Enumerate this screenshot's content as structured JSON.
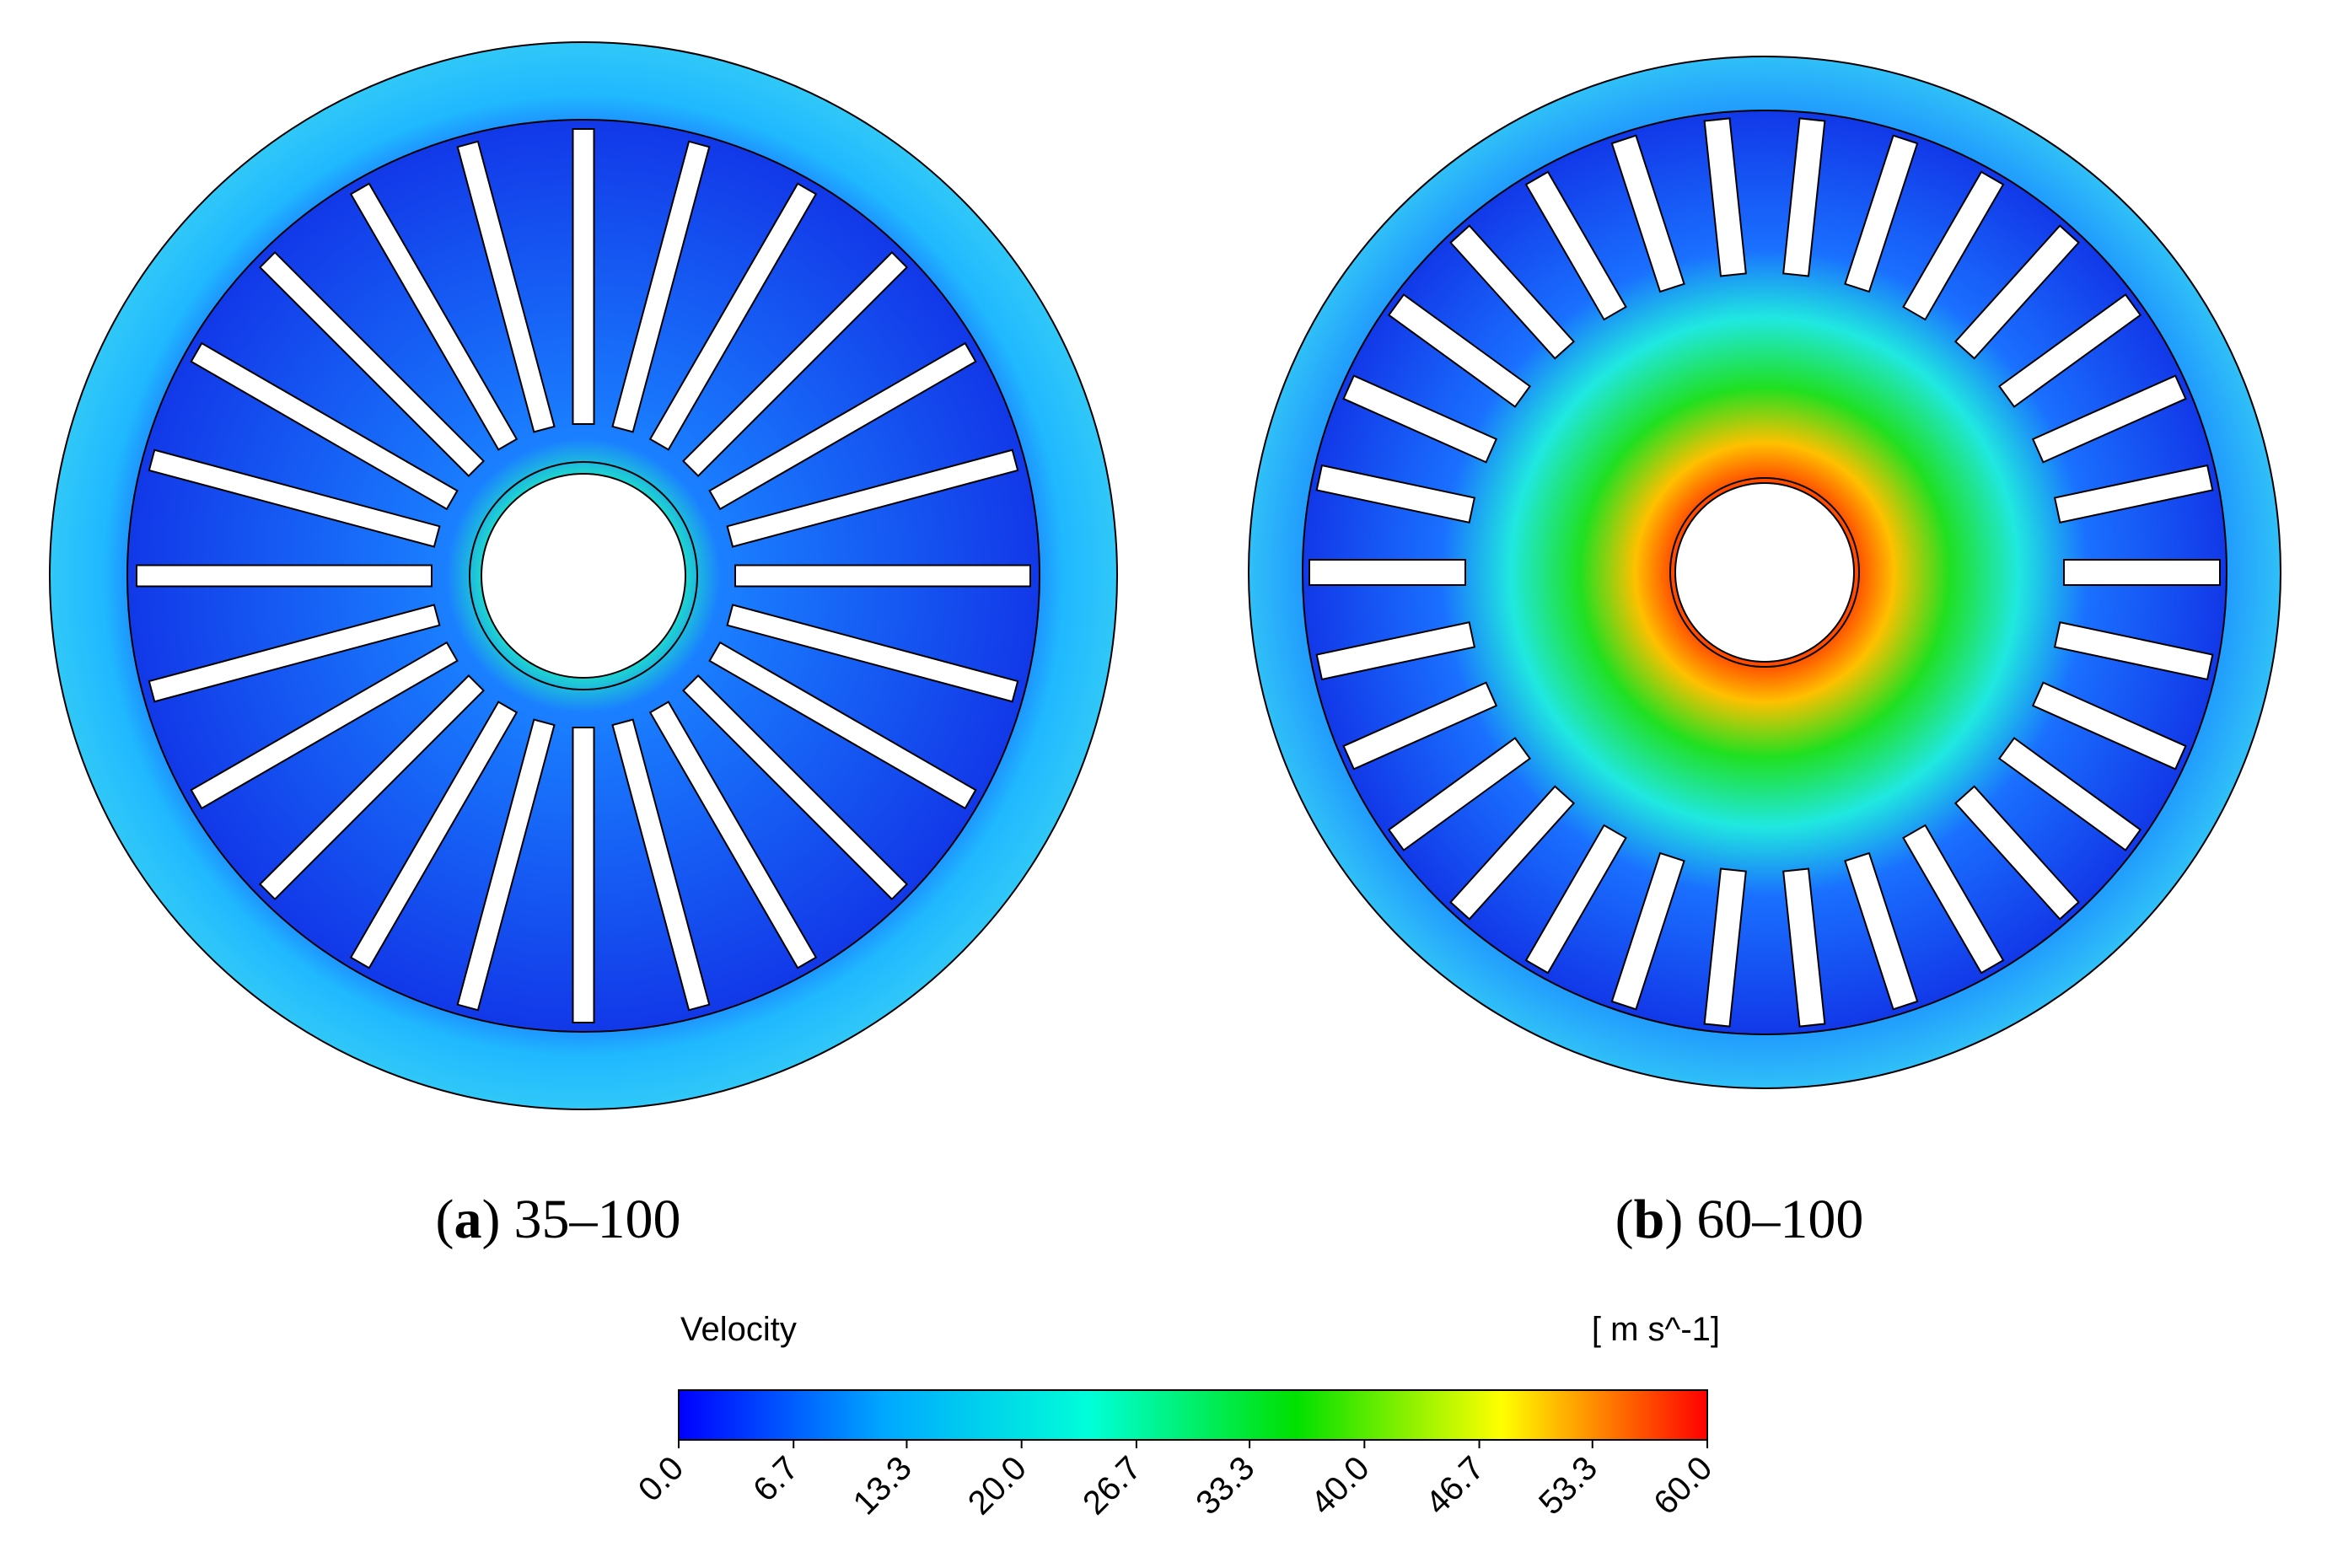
{
  "panels": [
    {
      "caption": {
        "open": "(",
        "letter": "a",
        "close": ")",
        "text": "35–100"
      },
      "blades": 24
    },
    {
      "caption": {
        "open": "(",
        "letter": "b",
        "close": ")",
        "text": "60–100"
      },
      "blades": 30
    }
  ],
  "colorbar": {
    "label": "Velocity",
    "unit": "[ m s^-1]",
    "min": 0,
    "max": 60,
    "colors": [
      "#0000ff",
      "#00a8ff",
      "#00ffd8",
      "#00e000",
      "#ffff00",
      "#ff0000"
    ],
    "ticks": [
      {
        "value": 0,
        "label": "0.0"
      },
      {
        "value": 6.7,
        "label": "6.7"
      },
      {
        "value": 13.3,
        "label": "13.3"
      },
      {
        "value": 20,
        "label": "20.0"
      },
      {
        "value": 26.7,
        "label": "26.7"
      },
      {
        "value": 33.3,
        "label": "33.3"
      },
      {
        "value": 40,
        "label": "40.0"
      },
      {
        "value": 46.7,
        "label": "46.7"
      },
      {
        "value": 53.3,
        "label": "53.3"
      },
      {
        "value": 60,
        "label": "60.0"
      }
    ]
  }
}
